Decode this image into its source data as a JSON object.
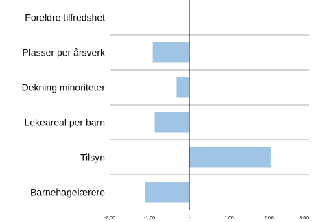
{
  "chart_data": {
    "type": "bar",
    "orientation": "horizontal",
    "categories": [
      "Foreldre tilfredshet",
      "Plasser per årsverk",
      "Dekning minoriteter",
      "Lekeareal per barn",
      "Tilsyn",
      "Barnehagelærere"
    ],
    "values": [
      0,
      -0.92,
      -0.32,
      -0.87,
      2.05,
      -1.12
    ],
    "xlim": [
      -2,
      3
    ],
    "x_ticks": [
      -2,
      -1,
      0,
      1,
      2,
      3
    ],
    "x_tick_labels": [
      "-2,00",
      "-1,00",
      "-",
      "1,00",
      "2,00",
      "3,00"
    ],
    "grid": "horizontal separators between categories",
    "bar_color": "#a0c4e4",
    "title": "",
    "xlabel": "",
    "ylabel": ""
  }
}
